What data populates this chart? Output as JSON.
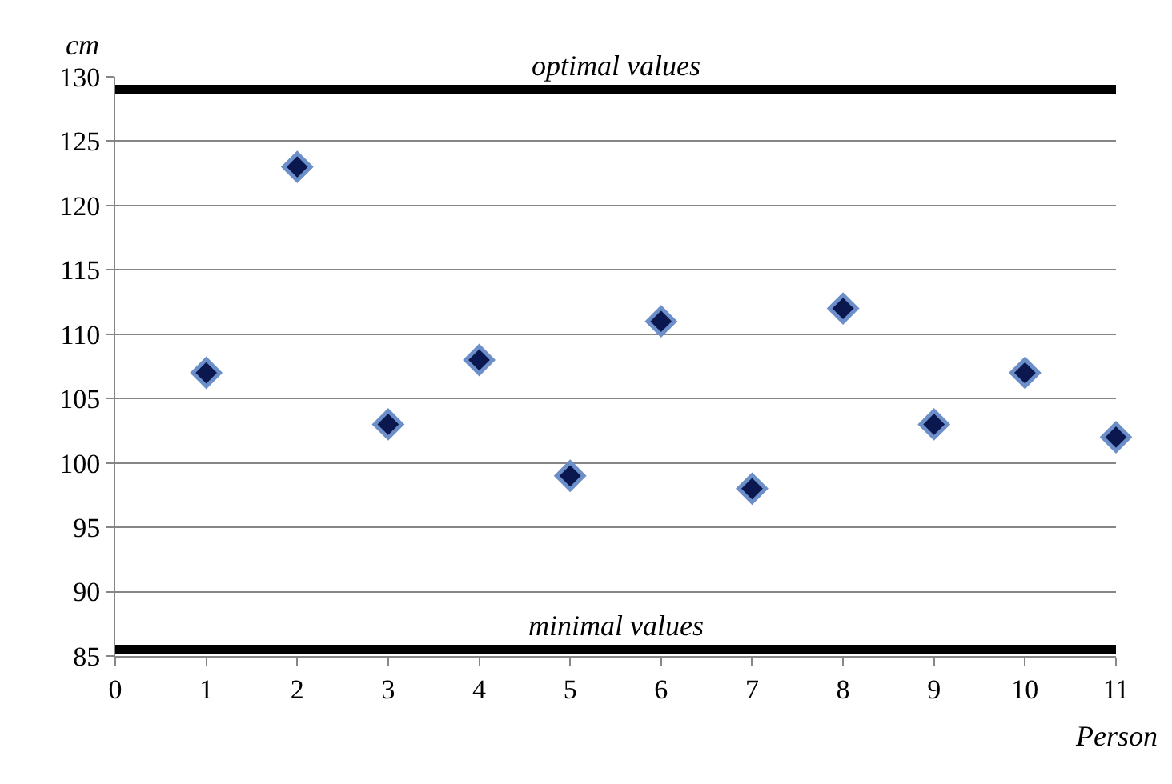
{
  "chart_data": {
    "type": "scatter",
    "xlabel": "Person",
    "ylabel": "cm",
    "x": [
      1,
      2,
      3,
      4,
      5,
      6,
      7,
      8,
      9,
      10,
      11
    ],
    "series": [
      {
        "color": "#0b1850",
        "values": [
          107,
          123,
          103,
          108,
          99,
          111,
          98,
          112,
          103,
          107,
          102
        ]
      }
    ],
    "xlim": [
      0,
      11
    ],
    "xticks": [
      0,
      1,
      2,
      3,
      4,
      5,
      6,
      7,
      8,
      9,
      10,
      11
    ],
    "ylim": [
      85,
      130
    ],
    "yticks": [
      85,
      90,
      95,
      100,
      105,
      110,
      115,
      120,
      125,
      130
    ],
    "grid": "y",
    "marker": "diamond",
    "ref_lines": [
      {
        "axis": "y",
        "value": 129,
        "label": "optimal values",
        "color": "#000000",
        "line_style": "solid"
      },
      {
        "axis": "y",
        "value": 85.5,
        "label": "minimal values",
        "color": "#000000",
        "line_style": "solid"
      }
    ]
  }
}
